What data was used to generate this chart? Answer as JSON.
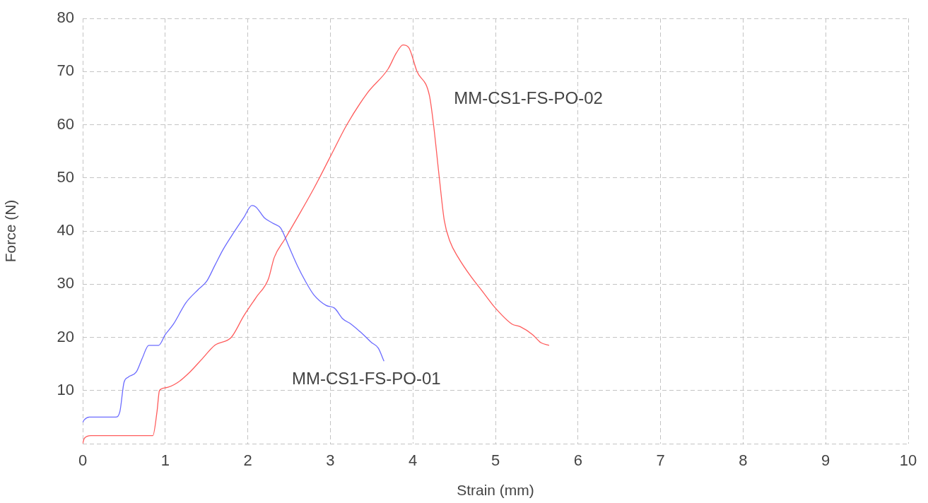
{
  "chart_data": {
    "type": "line",
    "xlabel": "Strain (mm)",
    "ylabel": "Force (N)",
    "xlim": [
      0,
      10
    ],
    "xticks": [
      0,
      1,
      2,
      3,
      4,
      5,
      6,
      7,
      8,
      9,
      10
    ],
    "ylim": [
      0,
      80
    ],
    "yticks": [
      {
        "value": 0,
        "label": null
      },
      10,
      20,
      30,
      40,
      50,
      60,
      70,
      80
    ],
    "grid": true,
    "legend": false,
    "marker": "none",
    "line_style": "solid",
    "series": [
      {
        "name": "MM-CS1-FS-PO-01",
        "color": "#6b6bff",
        "x": [
          0,
          0.02,
          0.08,
          0.4,
          0.45,
          0.5,
          0.55,
          0.65,
          0.72,
          0.8,
          0.92,
          1.0,
          1.1,
          1.25,
          1.4,
          1.5,
          1.6,
          1.7,
          1.8,
          1.95,
          2.05,
          2.1,
          2.2,
          2.3,
          2.4,
          2.5,
          2.6,
          2.7,
          2.8,
          2.95,
          3.05,
          3.15,
          3.25,
          3.4,
          3.5,
          3.58,
          3.65
        ],
        "values": [
          4,
          4.5,
          5,
          5,
          6,
          11.5,
          12.5,
          13.5,
          16,
          18.5,
          18.5,
          20.5,
          22.5,
          26.5,
          29,
          30.5,
          33.5,
          36.5,
          39,
          42.5,
          44.8,
          44.5,
          42.5,
          41.5,
          40.5,
          37,
          33.5,
          30.5,
          28,
          26,
          25.5,
          23.5,
          22.5,
          20.5,
          19,
          18,
          15.5
        ]
      },
      {
        "name": "MM-CS1-FS-PO-02",
        "color": "#ff5c5c",
        "x": [
          0,
          0.02,
          0.1,
          0.5,
          0.85,
          0.9,
          0.93,
          1.0,
          1.15,
          1.3,
          1.45,
          1.6,
          1.8,
          1.95,
          2.1,
          2.25,
          2.32,
          2.45,
          2.6,
          2.8,
          3.0,
          3.2,
          3.45,
          3.7,
          3.8,
          3.88,
          3.95,
          4.05,
          4.2,
          4.25,
          4.32,
          4.38,
          4.45,
          4.55,
          4.7,
          4.85,
          5.0,
          5.2,
          5.3,
          5.45,
          5.55,
          5.65
        ],
        "values": [
          0,
          1,
          1.5,
          1.5,
          1.5,
          6,
          10,
          10.5,
          11.5,
          13.5,
          16,
          18.5,
          20,
          24,
          27.5,
          31,
          35,
          38.5,
          42.5,
          48,
          54,
          60,
          66,
          70.5,
          73.5,
          75,
          74.5,
          70,
          65.5,
          60,
          50,
          42,
          38,
          35,
          31.5,
          28.5,
          25.5,
          22.5,
          22,
          20.5,
          19,
          18.5
        ]
      }
    ]
  }
}
